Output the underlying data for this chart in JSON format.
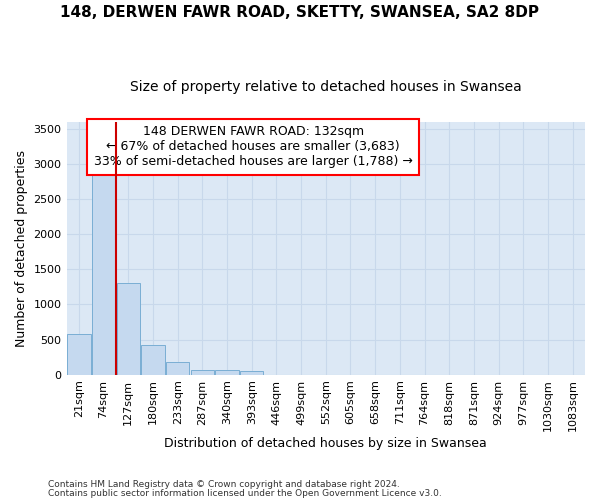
{
  "title": "148, DERWEN FAWR ROAD, SKETTY, SWANSEA, SA2 8DP",
  "subtitle": "Size of property relative to detached houses in Swansea",
  "xlabel": "Distribution of detached houses by size in Swansea",
  "ylabel": "Number of detached properties",
  "footnote1": "Contains HM Land Registry data © Crown copyright and database right 2024.",
  "footnote2": "Contains public sector information licensed under the Open Government Licence v3.0.",
  "bar_labels": [
    "21sqm",
    "74sqm",
    "127sqm",
    "180sqm",
    "233sqm",
    "287sqm",
    "340sqm",
    "393sqm",
    "446sqm",
    "499sqm",
    "552sqm",
    "605sqm",
    "658sqm",
    "711sqm",
    "764sqm",
    "818sqm",
    "871sqm",
    "924sqm",
    "977sqm",
    "1030sqm",
    "1083sqm"
  ],
  "bar_values": [
    580,
    2920,
    1300,
    420,
    175,
    70,
    70,
    50,
    0,
    0,
    0,
    0,
    0,
    0,
    0,
    0,
    0,
    0,
    0,
    0,
    0
  ],
  "bar_color": "#c5d9ef",
  "bar_edge_color": "#7aaed4",
  "grid_color": "#c8d8eb",
  "axes_bg_color": "#dce8f5",
  "fig_bg_color": "#ffffff",
  "vline_color": "#cc0000",
  "vline_x_index": 2,
  "annotation_text": "148 DERWEN FAWR ROAD: 132sqm\n← 67% of detached houses are smaller (3,683)\n33% of semi-detached houses are larger (1,788) →",
  "ylim": [
    0,
    3600
  ],
  "yticks": [
    0,
    500,
    1000,
    1500,
    2000,
    2500,
    3000,
    3500
  ],
  "title_fontsize": 11,
  "subtitle_fontsize": 10,
  "axis_label_fontsize": 9,
  "tick_fontsize": 8,
  "annotation_fontsize": 9
}
